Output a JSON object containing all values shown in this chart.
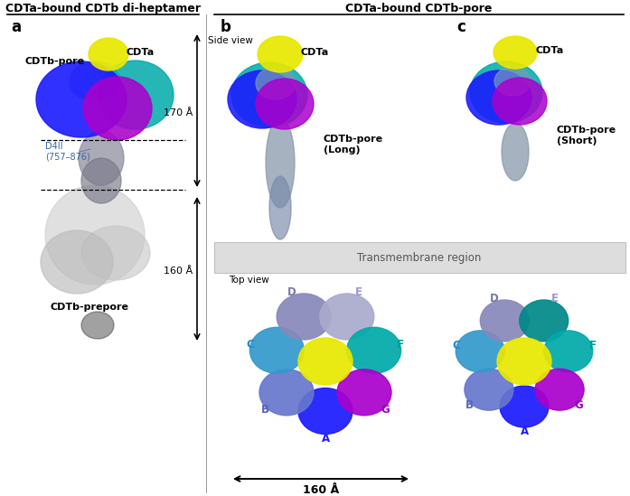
{
  "title_left": "CDTa-bound CDTb di-heptamer",
  "title_right": "CDTa-bound CDTb-pore",
  "panel_a_label": "a",
  "panel_b_label": "b",
  "panel_c_label": "c",
  "label_cdta_a": "CDTa",
  "label_cdtb_pore_a": "CDTb-pore",
  "label_d4ii": "D4II\n(757–876)",
  "label_170": "170 Å",
  "label_160_left": "160 Å",
  "label_160_bottom": "160 Å",
  "label_cdtb_prepore": "CDTb-prepore",
  "label_side_view": "Side view",
  "label_top_view": "Top view",
  "label_cdta_b": "CDTa",
  "label_cdtb_long": "CDTb-pore\n(Long)",
  "label_cdta_c": "CDTa",
  "label_cdtb_short": "CDTb-pore\n(Short)",
  "label_transmembrane": "Transmembrane region",
  "subunit_labels": [
    "A",
    "B",
    "C",
    "D",
    "E",
    "F",
    "G"
  ],
  "subunit_colors": [
    "#1a1aff",
    "#6666cc",
    "#4488cc",
    "#8888cc",
    "#aaaacc",
    "#00aaaa",
    "#aa00aa"
  ],
  "color_yellow": "#e8e800",
  "color_blue": "#1a1aff",
  "color_purple": "#aa00cc",
  "color_cyan": "#00aaaa",
  "color_teal": "#008888",
  "color_lavender": "#8888cc",
  "color_steel": "#4477aa",
  "color_gray": "#aaaaaa",
  "color_light_gray": "#dddddd",
  "bg_color": "#ffffff"
}
